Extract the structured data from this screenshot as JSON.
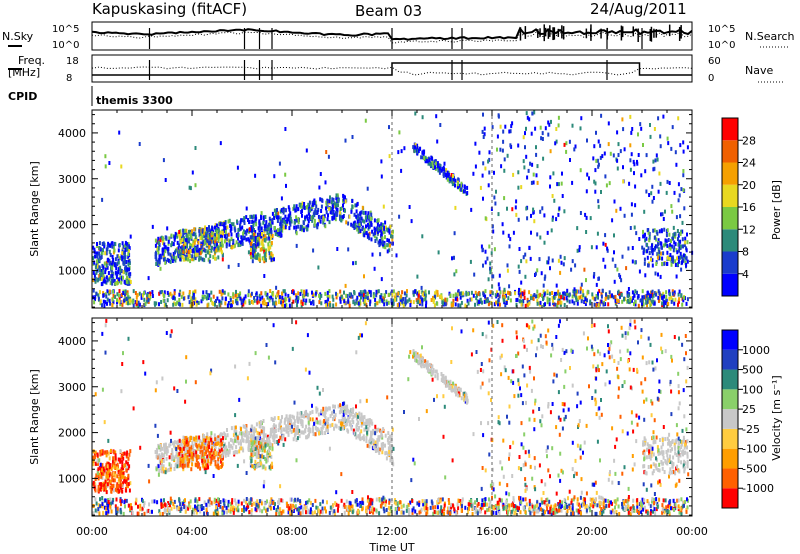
{
  "title": {
    "station": "Kapuskasing (fitACF)",
    "beam": "Beam 03",
    "date": "24/Aug/2011"
  },
  "params": {
    "nsky_label": "N.Sky",
    "nsearch_label": "N.Search",
    "freq_label_1": "Freq.",
    "freq_label_2": "[MHz]",
    "nave_label": "Nave",
    "cpid_label": "CPID",
    "cpid_value": "themis 3300",
    "noise_ticks": [
      "10^5",
      "10^0"
    ],
    "freq_ticks": [
      "18",
      "8"
    ],
    "nave_ticks": [
      "60",
      "0"
    ]
  },
  "colors": {
    "power": [
      "#0000ff",
      "#1a3ccc",
      "#2c8a7a",
      "#7ac943",
      "#e8d820",
      "#f5a000",
      "#f06000",
      "#ff0000"
    ],
    "velocity": [
      "#ff0000",
      "#ff6000",
      "#ff9e00",
      "#ffcc40",
      "#c8c8c8",
      "#8ad06a",
      "#2c8a7a",
      "#2040c0",
      "#0000ff"
    ]
  },
  "chart_data": [
    {
      "type": "heatmap",
      "panel": "power",
      "xlabel": "",
      "ylabel": "Slant Range [km]",
      "xlim": [
        "00:00",
        "24:00"
      ],
      "ylim": [
        180,
        4500
      ],
      "x_ticks": [
        "00:00",
        "04:00",
        "08:00",
        "12:00",
        "16:00",
        "20:00",
        "00:00"
      ],
      "y_ticks": [
        1000,
        2000,
        3000,
        4000
      ],
      "colorbar_label": "Power [dB]",
      "colorbar_ticks": [
        "28",
        "24",
        "20",
        "16",
        "12",
        "8",
        "4"
      ],
      "features": [
        {
          "time_ut": [
            0.0,
            1.5
          ],
          "range_km": [
            700,
            1500
          ],
          "level": "low"
        },
        {
          "time_ut": [
            2.5,
            9.5
          ],
          "range_km": [
            1200,
            2600
          ],
          "level": "medium"
        },
        {
          "time_ut": [
            9.5,
            12.0
          ],
          "range_km": [
            1300,
            2600
          ],
          "level": "low"
        },
        {
          "time_ut": [
            12.8,
            15.0
          ],
          "range_km": [
            2600,
            3700
          ],
          "level": "low"
        },
        {
          "time_ut": [
            17.0,
            23.8
          ],
          "range_km": [
            200,
            4500
          ],
          "level": "scattered"
        }
      ]
    },
    {
      "type": "heatmap",
      "panel": "velocity",
      "xlabel": "Time UT",
      "ylabel": "Slant Range [km]",
      "xlim": [
        "00:00",
        "24:00"
      ],
      "ylim": [
        180,
        4500
      ],
      "x_ticks": [
        "00:00",
        "04:00",
        "08:00",
        "12:00",
        "16:00",
        "20:00",
        "00:00"
      ],
      "y_ticks": [
        1000,
        2000,
        3000,
        4000
      ],
      "colorbar_label": "Velocity [m s⁻¹]",
      "colorbar_ticks": [
        "1000",
        "500",
        "100",
        "25",
        "-25",
        "-100",
        "-500",
        "-1000"
      ],
      "features": [
        {
          "time_ut": [
            0.0,
            1.5
          ],
          "range_km": [
            700,
            1500
          ],
          "velocity": "negative"
        },
        {
          "time_ut": [
            3.0,
            5.3
          ],
          "range_km": [
            1200,
            2000
          ],
          "velocity": "strong negative"
        },
        {
          "time_ut": [
            6.3,
            7.2
          ],
          "range_km": [
            1200,
            1800
          ],
          "velocity": "mixed"
        },
        {
          "time_ut": [
            7.0,
            12.0
          ],
          "range_km": [
            1300,
            2600
          ],
          "velocity": "near zero"
        },
        {
          "time_ut": [
            12.8,
            15.0
          ],
          "range_km": [
            2600,
            3700
          ],
          "velocity": "near zero"
        },
        {
          "time_ut": [
            17.0,
            23.8
          ],
          "range_km": [
            200,
            4500
          ],
          "velocity": "scattered"
        }
      ]
    }
  ]
}
